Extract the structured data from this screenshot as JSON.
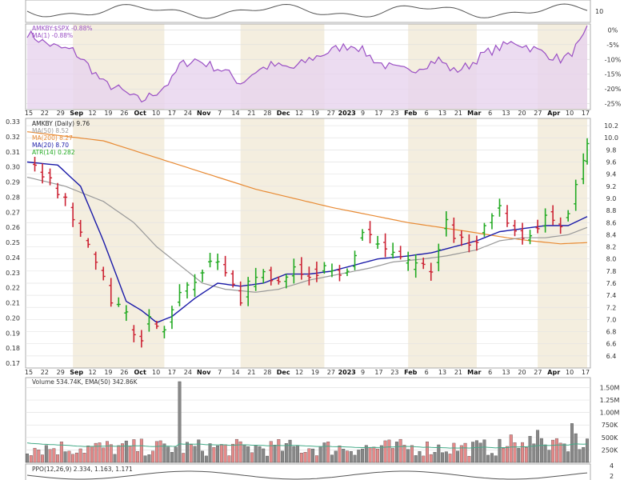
{
  "colors": {
    "up": "#22aa22",
    "down": "#cc2233",
    "ma20": "#1a1aa8",
    "ma50": "#999999",
    "ma200": "#e88a33",
    "relative": "#9a4fc4",
    "relative_fill": "#e7d3ee",
    "shade": "#f4eedf",
    "volume_up": "#888888",
    "volume_down": "#e58a8a",
    "volume_ema": "#44aa88",
    "ppo": "#555555"
  },
  "date_labels": [
    "15",
    "22",
    "29",
    "Sep",
    "12",
    "19",
    "26",
    "Oct",
    "10",
    "17",
    "24",
    "Nov",
    "7",
    "14",
    "21",
    "28",
    "Dec",
    "12",
    "19",
    "27",
    "2023",
    "9",
    "17",
    "23",
    "Feb",
    "6",
    "13",
    "21",
    "Mar",
    "6",
    "13",
    "20",
    "27",
    "Apr",
    "10",
    "17"
  ],
  "bold_dates": [
    "Sep",
    "Oct",
    "Nov",
    "Dec",
    "2023",
    "Feb",
    "Mar",
    "Apr"
  ],
  "top_panel": {
    "ticks": [
      "10"
    ]
  },
  "relative_panel": {
    "legend": [
      "AMKBY:$SPX -0.88%",
      "MA(1) -0.88%"
    ],
    "ticks": [
      "0%",
      "-5%",
      "-10%",
      "-15%",
      "-20%",
      "-25%"
    ],
    "ylim": [
      -27,
      2
    ]
  },
  "price_panel": {
    "legend": [
      "AMKBY (Daily) 9.76",
      "MA(50) 8.52",
      "MA(200) 8.27",
      "MA(20) 8.70",
      "ATR(14) 0.282"
    ],
    "left_ticks": [
      "0.33",
      "0.32",
      "0.31",
      "0.30",
      "0.29",
      "0.28",
      "0.27",
      "0.26",
      "0.25",
      "0.24",
      "0.23",
      "0.22",
      "0.21",
      "0.20",
      "0.19",
      "0.18",
      "0.17"
    ],
    "right_ticks": [
      "10.2",
      "10.0",
      "9.8",
      "9.6",
      "9.4",
      "9.2",
      "9.0",
      "8.8",
      "8.6",
      "8.4",
      "8.2",
      "8.0",
      "7.8",
      "7.6",
      "7.4",
      "7.2",
      "7.0",
      "6.8",
      "6.6",
      "6.4"
    ]
  },
  "volume_panel": {
    "legend": "Volume 534.74K, EMA(50) 342.86K",
    "ticks": [
      "1.50M",
      "1.25M",
      "1.00M",
      "750K",
      "500K",
      "250K"
    ]
  },
  "ppo_panel": {
    "legend": "PPO(12,26,9) 2.334, 1.163, 1.171",
    "ticks": [
      "4",
      "2"
    ]
  },
  "chart_data": {
    "type": "ohlc",
    "ylim_price": [
      6.2,
      10.32
    ],
    "price_anchors": [
      [
        0,
        9.6
      ],
      [
        5,
        9.35
      ],
      [
        10,
        8.95
      ],
      [
        14,
        8.4
      ],
      [
        18,
        8.0
      ],
      [
        22,
        7.25
      ],
      [
        26,
        7.1
      ],
      [
        28,
        6.75
      ],
      [
        30,
        6.6
      ],
      [
        32,
        7.05
      ],
      [
        34,
        6.9
      ],
      [
        36,
        6.8
      ],
      [
        38,
        7.15
      ],
      [
        40,
        7.4
      ],
      [
        44,
        7.65
      ],
      [
        48,
        8.0
      ],
      [
        52,
        7.85
      ],
      [
        56,
        7.2
      ],
      [
        58,
        7.55
      ],
      [
        62,
        7.75
      ],
      [
        66,
        7.7
      ],
      [
        70,
        7.85
      ],
      [
        74,
        7.75
      ],
      [
        78,
        7.8
      ],
      [
        82,
        7.75
      ],
      [
        86,
        8.0
      ],
      [
        88,
        8.5
      ],
      [
        92,
        8.3
      ],
      [
        96,
        8.15
      ],
      [
        100,
        7.9
      ],
      [
        104,
        8.0
      ],
      [
        106,
        7.8
      ],
      [
        110,
        8.6
      ],
      [
        112,
        8.35
      ],
      [
        116,
        8.2
      ],
      [
        118,
        8.3
      ],
      [
        120,
        8.55
      ],
      [
        124,
        8.85
      ],
      [
        126,
        8.55
      ],
      [
        128,
        8.4
      ],
      [
        132,
        8.3
      ],
      [
        136,
        8.75
      ],
      [
        138,
        8.6
      ],
      [
        140,
        8.45
      ],
      [
        142,
        8.8
      ],
      [
        146,
        9.55
      ],
      [
        147,
        9.85
      ]
    ],
    "ma20": [
      [
        0,
        9.6
      ],
      [
        8,
        9.55
      ],
      [
        14,
        9.2
      ],
      [
        20,
        8.3
      ],
      [
        26,
        7.3
      ],
      [
        30,
        7.15
      ],
      [
        34,
        6.95
      ],
      [
        38,
        7.05
      ],
      [
        44,
        7.35
      ],
      [
        50,
        7.6
      ],
      [
        56,
        7.55
      ],
      [
        62,
        7.6
      ],
      [
        68,
        7.75
      ],
      [
        74,
        7.75
      ],
      [
        80,
        7.8
      ],
      [
        86,
        7.9
      ],
      [
        92,
        8.0
      ],
      [
        100,
        8.05
      ],
      [
        106,
        8.1
      ],
      [
        112,
        8.2
      ],
      [
        118,
        8.3
      ],
      [
        124,
        8.45
      ],
      [
        130,
        8.5
      ],
      [
        136,
        8.55
      ],
      [
        142,
        8.55
      ],
      [
        147,
        8.7
      ]
    ],
    "ma50": [
      [
        0,
        9.35
      ],
      [
        10,
        9.2
      ],
      [
        20,
        8.95
      ],
      [
        28,
        8.6
      ],
      [
        34,
        8.2
      ],
      [
        40,
        7.9
      ],
      [
        46,
        7.6
      ],
      [
        52,
        7.5
      ],
      [
        60,
        7.45
      ],
      [
        66,
        7.5
      ],
      [
        74,
        7.65
      ],
      [
        82,
        7.75
      ],
      [
        90,
        7.85
      ],
      [
        96,
        7.95
      ],
      [
        104,
        8.0
      ],
      [
        110,
        8.05
      ],
      [
        118,
        8.15
      ],
      [
        124,
        8.3
      ],
      [
        130,
        8.35
      ],
      [
        136,
        8.35
      ],
      [
        142,
        8.4
      ],
      [
        147,
        8.52
      ]
    ],
    "ma200": [
      [
        0,
        10.1
      ],
      [
        20,
        9.95
      ],
      [
        40,
        9.55
      ],
      [
        60,
        9.15
      ],
      [
        80,
        8.85
      ],
      [
        100,
        8.6
      ],
      [
        116,
        8.45
      ],
      [
        126,
        8.35
      ],
      [
        132,
        8.3
      ],
      [
        140,
        8.25
      ],
      [
        147,
        8.27
      ]
    ],
    "relative_anchors": [
      [
        0,
        -1
      ],
      [
        4,
        -4
      ],
      [
        8,
        -6
      ],
      [
        12,
        -7
      ],
      [
        16,
        -12
      ],
      [
        20,
        -18
      ],
      [
        24,
        -20
      ],
      [
        28,
        -23
      ],
      [
        30,
        -24
      ],
      [
        34,
        -21
      ],
      [
        38,
        -17
      ],
      [
        40,
        -12
      ],
      [
        44,
        -10
      ],
      [
        48,
        -12
      ],
      [
        52,
        -14
      ],
      [
        56,
        -18
      ],
      [
        60,
        -14
      ],
      [
        64,
        -12
      ],
      [
        70,
        -13
      ],
      [
        74,
        -10
      ],
      [
        78,
        -8
      ],
      [
        82,
        -6
      ],
      [
        86,
        -5
      ],
      [
        88,
        -7
      ],
      [
        92,
        -11
      ],
      [
        96,
        -13
      ],
      [
        100,
        -14
      ],
      [
        104,
        -12
      ],
      [
        108,
        -10
      ],
      [
        112,
        -14
      ],
      [
        116,
        -12
      ],
      [
        120,
        -8
      ],
      [
        124,
        -6
      ],
      [
        128,
        -4
      ],
      [
        132,
        -6
      ],
      [
        136,
        -8
      ],
      [
        140,
        -10
      ],
      [
        142,
        -9
      ],
      [
        144,
        -6
      ],
      [
        146,
        -3
      ],
      [
        147,
        0
      ]
    ],
    "volume_spike": {
      "index": 40,
      "value": 1.62
    }
  }
}
